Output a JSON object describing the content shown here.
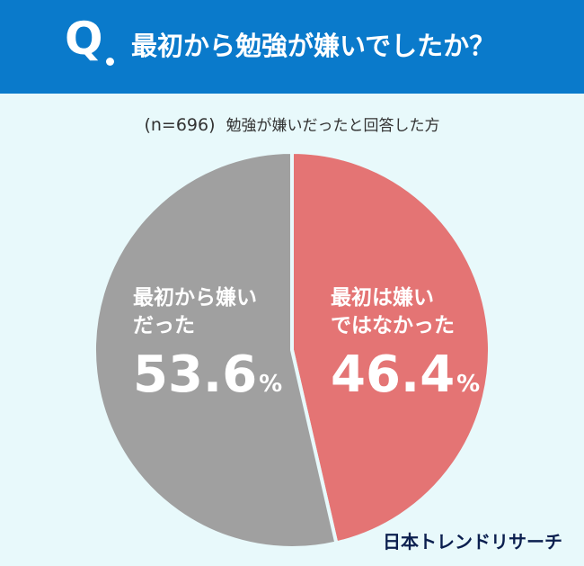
{
  "header": {
    "q_letter": "Q",
    "question": "最初から勉強が嫌いでしたか？"
  },
  "subtitle": {
    "n": "(n=696)",
    "text": "勉強が嫌いだったと回答した方"
  },
  "chart_data": {
    "type": "pie",
    "categories": [
      "最初は嫌いではなかった",
      "最初から嫌いだった"
    ],
    "values": [
      46.4,
      53.6
    ],
    "unit": "%",
    "colors": [
      "#e47474",
      "#a0a0a0"
    ],
    "labels": [
      {
        "line1": "最初は嫌い",
        "line2": "ではなかった",
        "value": "46.4",
        "unit": "%"
      },
      {
        "line1": "最初から嫌い",
        "line2": "だった",
        "value": "53.6",
        "unit": "%"
      }
    ],
    "start": "12 o'clock",
    "direction": "clockwise"
  },
  "brand": "日本トレンドリサーチ"
}
